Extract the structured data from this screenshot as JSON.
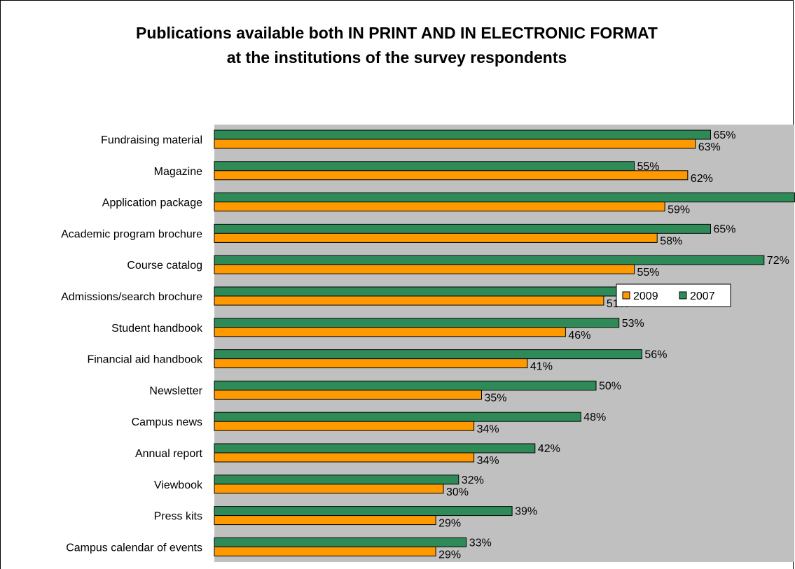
{
  "chart_data": {
    "type": "bar",
    "orientation": "horizontal",
    "title": [
      "Publications available both IN PRINT AND IN ELECTRONIC FORMAT",
      "at the institutions of the survey respondents"
    ],
    "categories": [
      "Fundraising material",
      "Magazine",
      "Application package",
      "Academic program brochure",
      "Course catalog",
      "Admissions/search brochure",
      "Student handbook",
      "Financial aid handbook",
      "Newsletter",
      "Campus news",
      "Annual report",
      "Viewbook",
      "Press kits",
      "Campus calendar of events"
    ],
    "series": [
      {
        "name": "2007",
        "color": "#2e8b57",
        "values": [
          65,
          55,
          76,
          65,
          72,
          64,
          53,
          56,
          50,
          48,
          42,
          32,
          39,
          33
        ],
        "labels": [
          "65%",
          "55%",
          "76%",
          "65%",
          "72%",
          "",
          "53%",
          "56%",
          "50%",
          "48%",
          "42%",
          "32%",
          "39%",
          "33%"
        ]
      },
      {
        "name": "2009",
        "color": "#ff9900",
        "values": [
          63,
          62,
          59,
          58,
          55,
          51,
          46,
          41,
          35,
          34,
          34,
          30,
          29,
          29
        ],
        "labels": [
          "63%",
          "62%",
          "59%",
          "58%",
          "55%",
          "51%",
          "46%",
          "41%",
          "35%",
          "34%",
          "34%",
          "30%",
          "29%",
          "29%"
        ]
      }
    ],
    "legend_order": [
      "2009",
      "2007"
    ],
    "xlim": [
      0,
      80
    ],
    "legend_position": "inside-right",
    "plot_background": "#c0c0c0",
    "grid": false
  }
}
